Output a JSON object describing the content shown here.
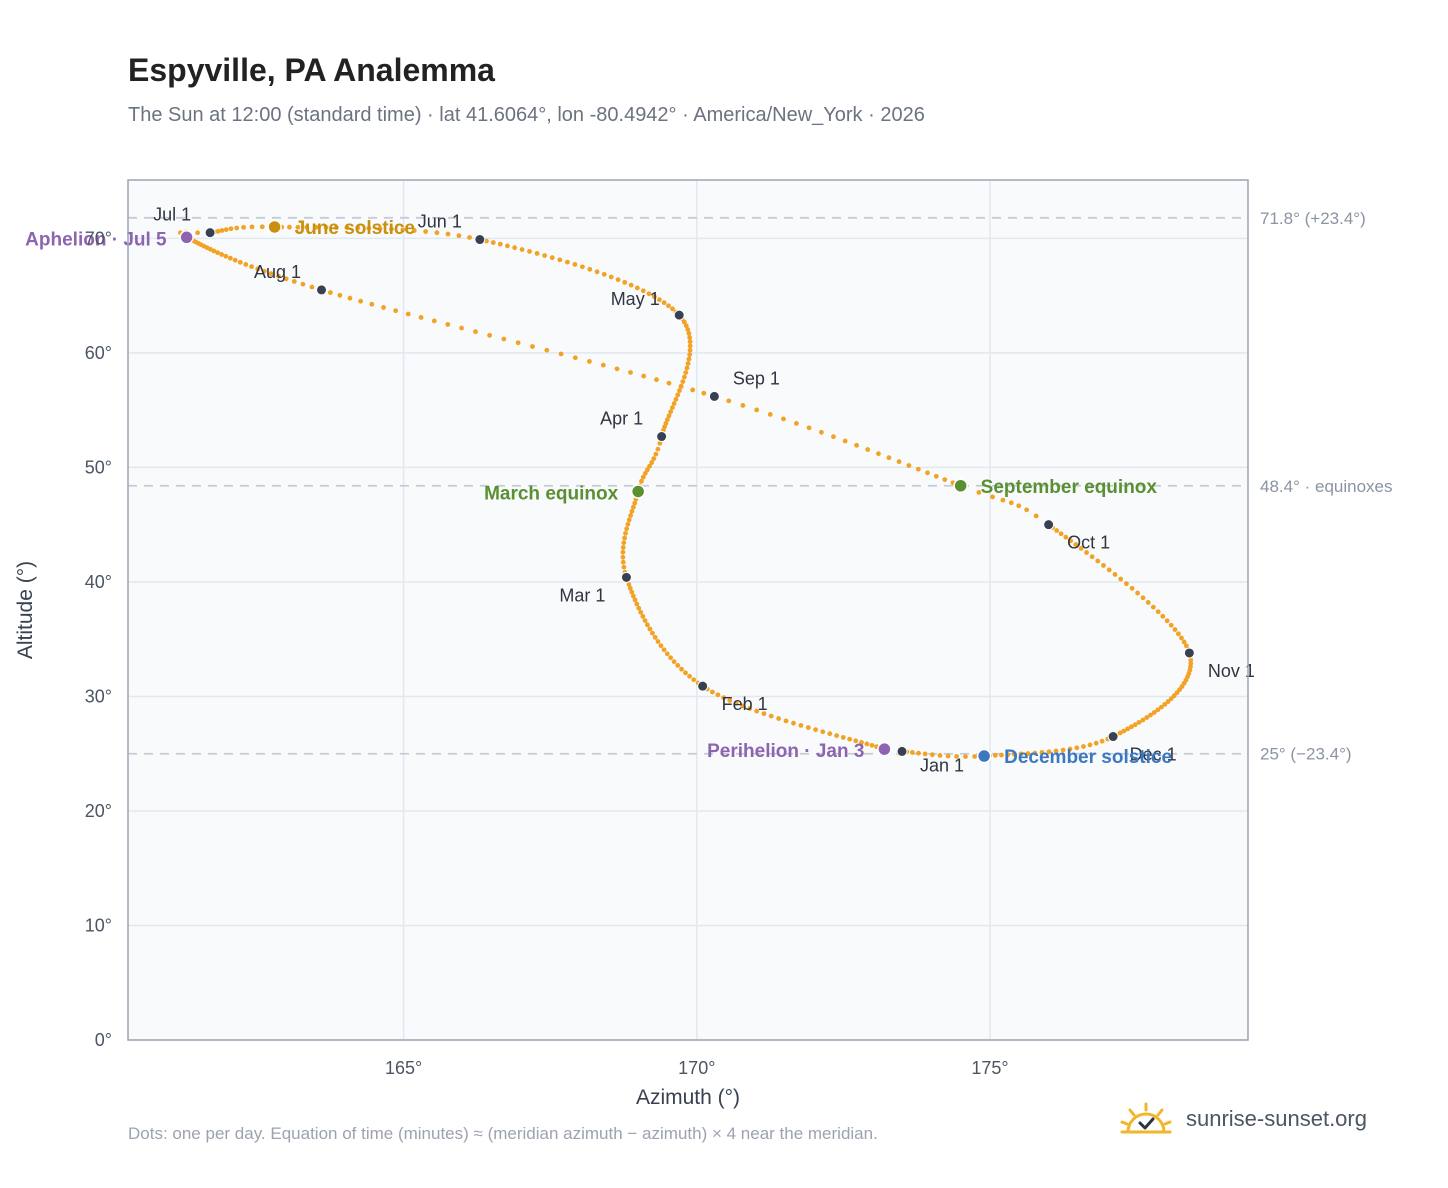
{
  "title": "Espyville, PA Analemma",
  "subtitle": "The Sun at 12:00 (standard time) · lat 41.6064°, lon -80.4942° · America/New_York · 2026",
  "footnote": "Dots: one per day. Equation of time (minutes) ≈ (meridian azimuth − azimuth) × 4 near the meridian.",
  "brand": {
    "name": "sunrise-sunset.org",
    "logo_icon": "sun-checkmark-icon"
  },
  "colors": {
    "curve": "#f2a224",
    "month_marker": "#374151",
    "june_solstice": "#c98f0d",
    "equinox": "#5a8f32",
    "december_solstice": "#3b78c0",
    "apsis": "#8d64b0",
    "reference_line": "#c5ccd6",
    "plot_bg": "#f8fafc",
    "grid": "#e2e8f0"
  },
  "chart_data": {
    "type": "scatter",
    "xlabel": "Azimuth (°)",
    "ylabel": "Altitude (°)",
    "xlim": [
      160.3,
      179.4
    ],
    "ylim": [
      0,
      75.1
    ],
    "x_ticks": [
      165,
      170,
      175
    ],
    "x_tick_labels": [
      "165°",
      "170°",
      "175°"
    ],
    "y_ticks": [
      0,
      10,
      20,
      30,
      40,
      50,
      60,
      70
    ],
    "y_tick_labels": [
      "0°",
      "10°",
      "20°",
      "30°",
      "40°",
      "50°",
      "60°",
      "70°"
    ],
    "grid": true,
    "reference_lines": [
      {
        "y": 71.8,
        "label": "71.8° (+23.4°)"
      },
      {
        "y": 48.4,
        "label": "48.4° · equinoxes"
      },
      {
        "y": 25.0,
        "label": "25° (−23.4°)"
      }
    ],
    "month_markers": [
      {
        "label": "Jan 1",
        "x": 173.5,
        "y": 25.2
      },
      {
        "label": "Feb 1",
        "x": 170.1,
        "y": 30.9
      },
      {
        "label": "Mar 1",
        "x": 168.8,
        "y": 40.4
      },
      {
        "label": "Apr 1",
        "x": 169.4,
        "y": 52.7
      },
      {
        "label": "May 1",
        "x": 169.7,
        "y": 63.3
      },
      {
        "label": "Jun 1",
        "x": 166.3,
        "y": 69.9
      },
      {
        "label": "Jul 1",
        "x": 161.7,
        "y": 70.5
      },
      {
        "label": "Aug 1",
        "x": 163.6,
        "y": 65.5
      },
      {
        "label": "Sep 1",
        "x": 170.3,
        "y": 56.2
      },
      {
        "label": "Oct 1",
        "x": 176.0,
        "y": 45.0
      },
      {
        "label": "Nov 1",
        "x": 178.4,
        "y": 33.8
      },
      {
        "label": "Dec 1",
        "x": 177.1,
        "y": 26.5
      }
    ],
    "events": [
      {
        "label": "June solstice",
        "x": 162.8,
        "y": 71.0,
        "kind": "june_solstice"
      },
      {
        "label": "March equinox",
        "x": 169.0,
        "y": 47.9,
        "kind": "equinox"
      },
      {
        "label": "September equinox",
        "x": 174.5,
        "y": 48.4,
        "kind": "equinox"
      },
      {
        "label": "December solstice",
        "x": 174.9,
        "y": 24.8,
        "kind": "december_solstice"
      },
      {
        "label": "Aphelion · Jul 5",
        "x": 161.3,
        "y": 70.1,
        "kind": "apsis"
      },
      {
        "label": "Perihelion · Jan 3",
        "x": 173.2,
        "y": 25.4,
        "kind": "apsis"
      }
    ]
  }
}
